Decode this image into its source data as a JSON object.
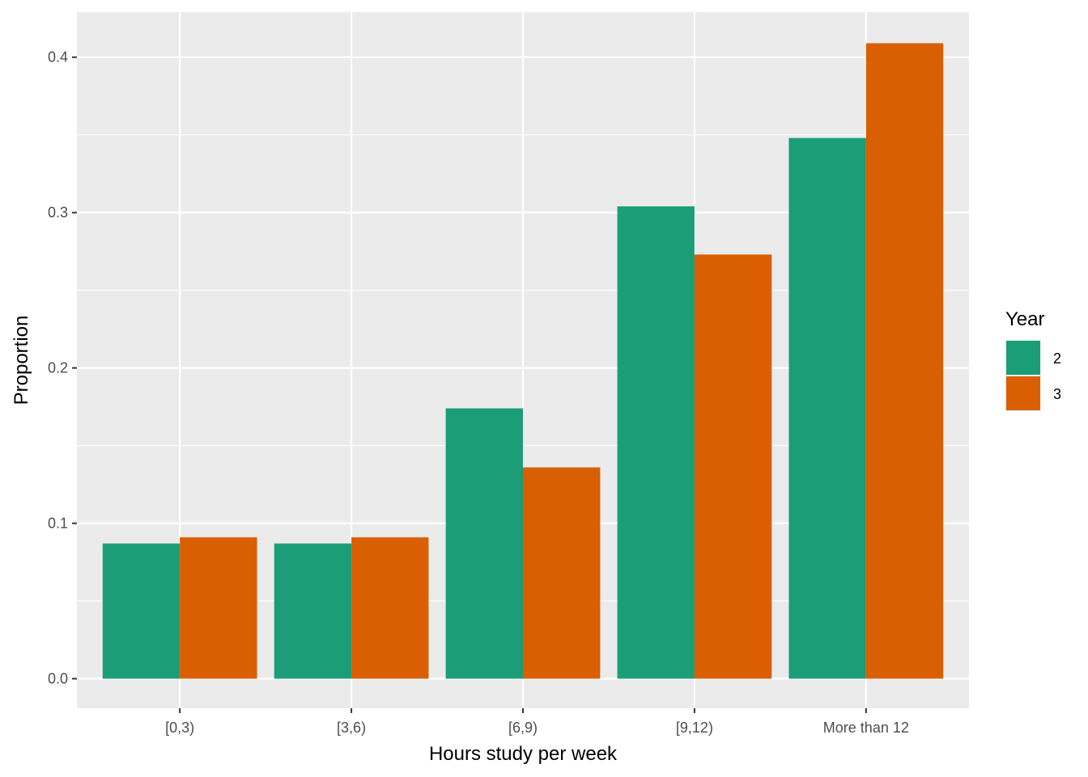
{
  "chart_data": {
    "type": "bar",
    "title": "",
    "xlabel": "Hours study per week",
    "ylabel": "Proportion",
    "categories": [
      "[0,3)",
      "[3,6)",
      "[6,9)",
      "[9,12)",
      "More than 12"
    ],
    "series": [
      {
        "name": "2",
        "color": "#1B9E77",
        "values": [
          0.087,
          0.087,
          0.174,
          0.304,
          0.348
        ]
      },
      {
        "name": "3",
        "color": "#D95F02",
        "values": [
          0.091,
          0.091,
          0.136,
          0.273,
          0.409
        ]
      }
    ],
    "ylim": [
      -0.019,
      0.429
    ],
    "yticks": [
      0.0,
      0.1,
      0.2,
      0.3,
      0.4
    ],
    "ytick_labels": [
      "0.0",
      "0.1",
      "0.2",
      "0.3",
      "0.4"
    ],
    "grid": true,
    "legend": {
      "title": "Year",
      "position": "right"
    },
    "panel_background": "#EBEBEB",
    "grid_color": "#FFFFFF"
  }
}
